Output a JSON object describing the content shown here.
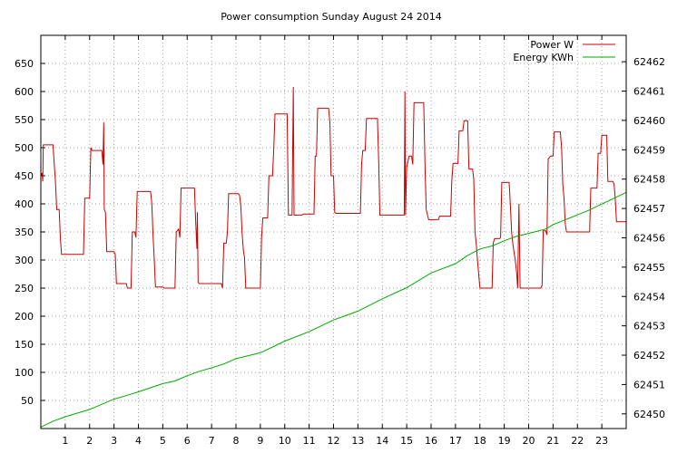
{
  "chart_data": {
    "type": "line",
    "title": "Power consumption Sunday August 24 2014",
    "xlabel": "",
    "ylabel": "",
    "xlim": [
      0,
      24
    ],
    "ylim": [
      0,
      700
    ],
    "y2lim": [
      62449.5,
      62462.9
    ],
    "x_ticks": [
      1,
      2,
      3,
      4,
      5,
      6,
      7,
      8,
      9,
      10,
      11,
      12,
      13,
      14,
      15,
      16,
      17,
      18,
      19,
      20,
      21,
      22,
      23
    ],
    "y_ticks": [
      50,
      100,
      150,
      200,
      250,
      300,
      350,
      400,
      450,
      500,
      550,
      600,
      650
    ],
    "y2_ticks": [
      62450,
      62451,
      62452,
      62453,
      62454,
      62455,
      62456,
      62457,
      62458,
      62459,
      62460,
      62461,
      62462
    ],
    "grid": true,
    "legend_position": "top-right",
    "series": [
      {
        "name": "Power W",
        "color": "#cc0000",
        "axis": "left",
        "points": [
          [
            0,
            450
          ],
          [
            0.05,
            455
          ],
          [
            0.08,
            440
          ],
          [
            0.1,
            505
          ],
          [
            0.25,
            505
          ],
          [
            0.5,
            505
          ],
          [
            0.55,
            470
          ],
          [
            0.6,
            440
          ],
          [
            0.65,
            390
          ],
          [
            0.75,
            390
          ],
          [
            0.8,
            340
          ],
          [
            0.85,
            310
          ],
          [
            1.0,
            310
          ],
          [
            1.5,
            310
          ],
          [
            1.75,
            310
          ],
          [
            1.8,
            410
          ],
          [
            2.0,
            410
          ],
          [
            2.05,
            500
          ],
          [
            2.1,
            495
          ],
          [
            2.5,
            495
          ],
          [
            2.55,
            470
          ],
          [
            2.58,
            545
          ],
          [
            2.6,
            390
          ],
          [
            2.65,
            385
          ],
          [
            2.7,
            315
          ],
          [
            3.0,
            315
          ],
          [
            3.05,
            310
          ],
          [
            3.1,
            258
          ],
          [
            3.5,
            258
          ],
          [
            3.55,
            250
          ],
          [
            3.7,
            250
          ],
          [
            3.75,
            350
          ],
          [
            3.85,
            350
          ],
          [
            3.9,
            340
          ],
          [
            3.95,
            422
          ],
          [
            4.5,
            422
          ],
          [
            4.55,
            400
          ],
          [
            4.6,
            345
          ],
          [
            4.65,
            300
          ],
          [
            4.7,
            252
          ],
          [
            5.0,
            252
          ],
          [
            5.05,
            250
          ],
          [
            5.5,
            250
          ],
          [
            5.55,
            350
          ],
          [
            5.65,
            355
          ],
          [
            5.7,
            340
          ],
          [
            5.75,
            428
          ],
          [
            6.0,
            428
          ],
          [
            6.3,
            428
          ],
          [
            6.35,
            365
          ],
          [
            6.4,
            320
          ],
          [
            6.42,
            385
          ],
          [
            6.45,
            260
          ],
          [
            6.5,
            258
          ],
          [
            7.0,
            258
          ],
          [
            7.4,
            258
          ],
          [
            7.45,
            250
          ],
          [
            7.5,
            330
          ],
          [
            7.6,
            330
          ],
          [
            7.65,
            350
          ],
          [
            7.7,
            418
          ],
          [
            8.0,
            418
          ],
          [
            8.1,
            418
          ],
          [
            8.15,
            415
          ],
          [
            8.2,
            395
          ],
          [
            8.25,
            350
          ],
          [
            8.3,
            318
          ],
          [
            8.35,
            305
          ],
          [
            8.4,
            250
          ],
          [
            9.0,
            250
          ],
          [
            9.05,
            340
          ],
          [
            9.1,
            375
          ],
          [
            9.3,
            375
          ],
          [
            9.35,
            450
          ],
          [
            9.5,
            450
          ],
          [
            9.55,
            500
          ],
          [
            9.6,
            560
          ],
          [
            10.0,
            560
          ],
          [
            10.1,
            560
          ],
          [
            10.15,
            380
          ],
          [
            10.2,
            380
          ],
          [
            10.3,
            380
          ],
          [
            10.35,
            608
          ],
          [
            10.38,
            380
          ],
          [
            10.7,
            380
          ],
          [
            10.75,
            382
          ],
          [
            11.0,
            382
          ],
          [
            11.2,
            382
          ],
          [
            11.25,
            485
          ],
          [
            11.3,
            485
          ],
          [
            11.35,
            570
          ],
          [
            11.5,
            570
          ],
          [
            11.8,
            570
          ],
          [
            11.85,
            545
          ],
          [
            11.9,
            450
          ],
          [
            12.0,
            450
          ],
          [
            12.05,
            385
          ],
          [
            12.1,
            383
          ],
          [
            13.0,
            383
          ],
          [
            13.1,
            383
          ],
          [
            13.15,
            470
          ],
          [
            13.2,
            495
          ],
          [
            13.3,
            495
          ],
          [
            13.35,
            552
          ],
          [
            13.8,
            552
          ],
          [
            13.85,
            480
          ],
          [
            13.9,
            380
          ],
          [
            14.0,
            380
          ],
          [
            14.5,
            380
          ],
          [
            14.9,
            380
          ],
          [
            14.93,
            600
          ],
          [
            14.95,
            380
          ],
          [
            15.0,
            465
          ],
          [
            15.1,
            485
          ],
          [
            15.2,
            485
          ],
          [
            15.25,
            470
          ],
          [
            15.3,
            580
          ],
          [
            15.7,
            580
          ],
          [
            15.75,
            470
          ],
          [
            15.8,
            390
          ],
          [
            15.9,
            372
          ],
          [
            16.0,
            372
          ],
          [
            16.3,
            372
          ],
          [
            16.35,
            378
          ],
          [
            16.8,
            378
          ],
          [
            16.85,
            440
          ],
          [
            16.9,
            472
          ],
          [
            17.1,
            472
          ],
          [
            17.15,
            530
          ],
          [
            17.3,
            530
          ],
          [
            17.35,
            548
          ],
          [
            17.5,
            548
          ],
          [
            17.55,
            462
          ],
          [
            17.7,
            462
          ],
          [
            17.75,
            445
          ],
          [
            17.8,
            350
          ],
          [
            17.85,
            330
          ],
          [
            17.9,
            300
          ],
          [
            18.0,
            250
          ],
          [
            18.5,
            250
          ],
          [
            18.55,
            330
          ],
          [
            18.6,
            338
          ],
          [
            18.8,
            338
          ],
          [
            18.85,
            340
          ],
          [
            18.9,
            438
          ],
          [
            19.2,
            438
          ],
          [
            19.25,
            400
          ],
          [
            19.3,
            350
          ],
          [
            19.35,
            330
          ],
          [
            19.45,
            300
          ],
          [
            19.5,
            280
          ],
          [
            19.55,
            250
          ],
          [
            19.6,
            400
          ],
          [
            19.65,
            250
          ],
          [
            20.5,
            250
          ],
          [
            20.55,
            255
          ],
          [
            20.6,
            352
          ],
          [
            20.7,
            352
          ],
          [
            20.75,
            345
          ],
          [
            20.8,
            480
          ],
          [
            20.9,
            485
          ],
          [
            21.0,
            485
          ],
          [
            21.05,
            528
          ],
          [
            21.3,
            528
          ],
          [
            21.35,
            500
          ],
          [
            21.4,
            435
          ],
          [
            21.45,
            410
          ],
          [
            21.5,
            365
          ],
          [
            21.55,
            350
          ],
          [
            22.0,
            350
          ],
          [
            22.5,
            350
          ],
          [
            22.55,
            428
          ],
          [
            22.8,
            428
          ],
          [
            22.85,
            490
          ],
          [
            22.95,
            490
          ],
          [
            23.0,
            522
          ],
          [
            23.2,
            522
          ],
          [
            23.25,
            440
          ],
          [
            23.45,
            440
          ],
          [
            23.5,
            435
          ],
          [
            23.55,
            410
          ],
          [
            23.6,
            368
          ],
          [
            24.0,
            368
          ]
        ]
      },
      {
        "name": "Energy KWh",
        "color": "#00aa00",
        "axis": "right",
        "points": [
          [
            0,
            62449.55
          ],
          [
            0.5,
            62449.75
          ],
          [
            1,
            62449.9
          ],
          [
            2,
            62450.15
          ],
          [
            3,
            62450.5
          ],
          [
            3.5,
            62450.62
          ],
          [
            4,
            62450.75
          ],
          [
            5,
            62451.03
          ],
          [
            5.5,
            62451.12
          ],
          [
            6,
            62451.3
          ],
          [
            6.5,
            62451.45
          ],
          [
            7,
            62451.57
          ],
          [
            7.5,
            62451.7
          ],
          [
            8,
            62451.88
          ],
          [
            9,
            62452.08
          ],
          [
            9.5,
            62452.28
          ],
          [
            10,
            62452.48
          ],
          [
            11,
            62452.8
          ],
          [
            12,
            62453.2
          ],
          [
            13,
            62453.5
          ],
          [
            14,
            62453.92
          ],
          [
            15,
            62454.3
          ],
          [
            15.5,
            62454.55
          ],
          [
            16,
            62454.8
          ],
          [
            17,
            62455.12
          ],
          [
            17.5,
            62455.4
          ],
          [
            18,
            62455.62
          ],
          [
            18.5,
            62455.72
          ],
          [
            19,
            62455.9
          ],
          [
            19.5,
            62456.05
          ],
          [
            20,
            62456.15
          ],
          [
            20.7,
            62456.3
          ],
          [
            21,
            62456.45
          ],
          [
            22,
            62456.78
          ],
          [
            22.5,
            62456.95
          ],
          [
            23,
            62457.15
          ],
          [
            23.5,
            62457.35
          ],
          [
            24,
            62457.55
          ]
        ]
      }
    ]
  }
}
